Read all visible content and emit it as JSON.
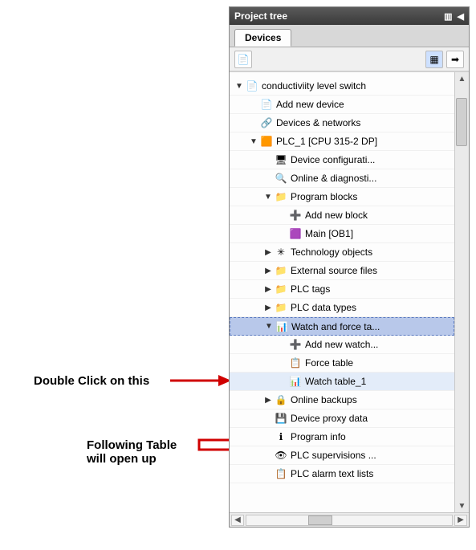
{
  "annotations": {
    "doubleClick": "Double Click on this",
    "followingTable": "Following Table\nwill open up"
  },
  "panel": {
    "title": "Project tree",
    "tab": "Devices"
  },
  "tree": [
    {
      "depth": 0,
      "toggle": "▼",
      "icon": "project",
      "label": "conductiviity level switch"
    },
    {
      "depth": 1,
      "toggle": "",
      "icon": "add",
      "label": "Add new device"
    },
    {
      "depth": 1,
      "toggle": "",
      "icon": "network",
      "label": "Devices & networks"
    },
    {
      "depth": 1,
      "toggle": "▼",
      "icon": "plc",
      "label": "PLC_1 [CPU 315-2 DP]"
    },
    {
      "depth": 2,
      "toggle": "",
      "icon": "devcfg",
      "label": "Device configurati..."
    },
    {
      "depth": 2,
      "toggle": "",
      "icon": "online",
      "label": "Online & diagnosti..."
    },
    {
      "depth": 2,
      "toggle": "▼",
      "icon": "folder",
      "label": "Program blocks"
    },
    {
      "depth": 3,
      "toggle": "",
      "icon": "addblk",
      "label": "Add new block"
    },
    {
      "depth": 3,
      "toggle": "",
      "icon": "ob",
      "label": "Main [OB1]"
    },
    {
      "depth": 2,
      "toggle": "▶",
      "icon": "tech",
      "label": "Technology objects"
    },
    {
      "depth": 2,
      "toggle": "▶",
      "icon": "folder",
      "label": "External source files"
    },
    {
      "depth": 2,
      "toggle": "▶",
      "icon": "folder",
      "label": "PLC tags"
    },
    {
      "depth": 2,
      "toggle": "▶",
      "icon": "folder",
      "label": "PLC data types"
    },
    {
      "depth": 2,
      "toggle": "▼",
      "icon": "watch",
      "label": "Watch and force ta...",
      "highlight": "primary"
    },
    {
      "depth": 3,
      "toggle": "",
      "icon": "addwtch",
      "label": "Add new watch..."
    },
    {
      "depth": 3,
      "toggle": "",
      "icon": "force",
      "label": "Force table"
    },
    {
      "depth": 3,
      "toggle": "",
      "icon": "wtable",
      "label": "Watch table_1",
      "highlight": "secondary"
    },
    {
      "depth": 2,
      "toggle": "▶",
      "icon": "backup",
      "label": "Online backups"
    },
    {
      "depth": 2,
      "toggle": "",
      "icon": "proxy",
      "label": "Device proxy data"
    },
    {
      "depth": 2,
      "toggle": "",
      "icon": "pinfo",
      "label": "Program info"
    },
    {
      "depth": 2,
      "toggle": "",
      "icon": "superv",
      "label": "PLC supervisions ..."
    },
    {
      "depth": 2,
      "toggle": "",
      "icon": "alarm",
      "label": "PLC alarm text lists"
    }
  ],
  "icons": {
    "project": "📄",
    "add": "📄",
    "network": "🔗",
    "plc": "🟧",
    "devcfg": "🖥",
    "online": "🔍",
    "folder": "📁",
    "addblk": "➕",
    "ob": "🟪",
    "tech": "✳",
    "watch": "📊",
    "addwtch": "➕",
    "force": "📋",
    "wtable": "📊",
    "backup": "🔒",
    "proxy": "💾",
    "pinfo": "ℹ",
    "superv": "👁",
    "alarm": "📋"
  },
  "colors": {
    "arrow": "#d00000"
  }
}
